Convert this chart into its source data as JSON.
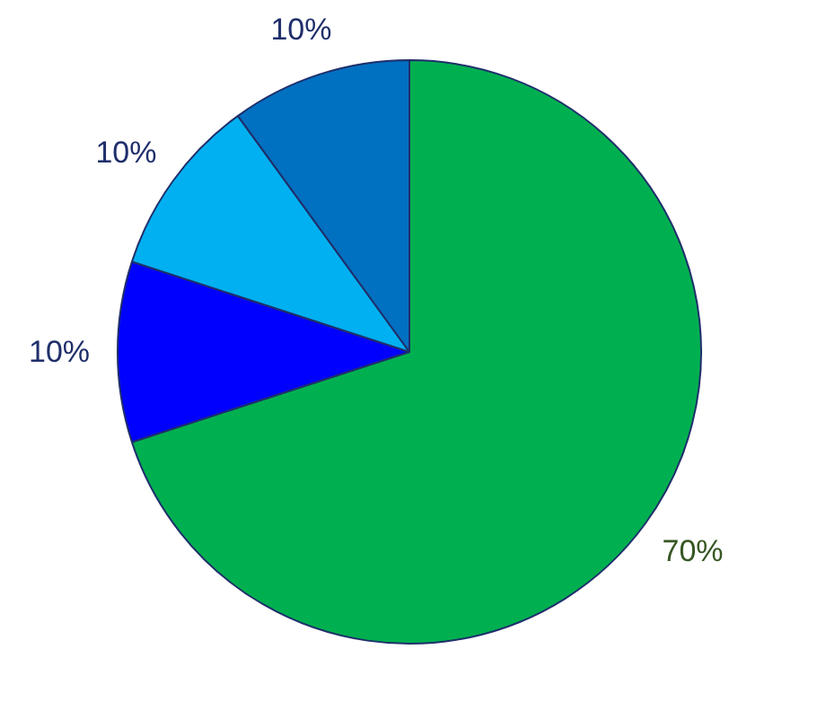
{
  "chart_data": {
    "type": "pie",
    "categories": [
      null,
      null,
      null,
      null
    ],
    "values": [
      70,
      10,
      10,
      10
    ],
    "colors": [
      "#00b050",
      "#0000ff",
      "#00b0f0",
      "#0070c0"
    ],
    "value_labels": [
      "70%",
      "10%",
      "10%",
      "10%"
    ]
  }
}
